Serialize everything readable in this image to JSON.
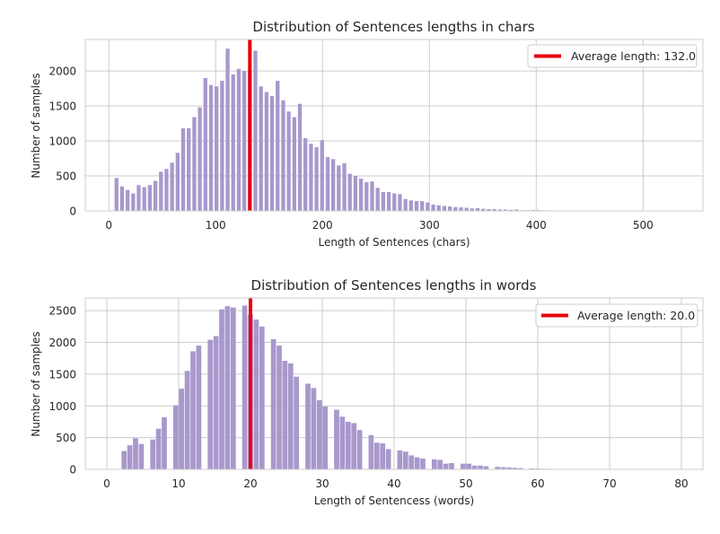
{
  "chart_data": [
    {
      "type": "bar",
      "title": "Distribution of Sentences lengths in chars",
      "xlabel": "Length of Sentences (chars)",
      "ylabel": "Number of samples",
      "xlim": [
        -22,
        556
      ],
      "ylim": [
        0,
        2450
      ],
      "xticks": [
        0,
        100,
        200,
        300,
        400,
        500
      ],
      "yticks": [
        0,
        500,
        1000,
        1500,
        2000
      ],
      "grid": true,
      "legend_position": "top-right",
      "bar_color": "#a898cc",
      "bins": {
        "centers": [
          7.2,
          12.4,
          17.6,
          22.8,
          28.0,
          33.2,
          38.4,
          43.6,
          48.8,
          54.0,
          59.2,
          64.4,
          69.6,
          74.8,
          80.0,
          85.2,
          90.4,
          95.6,
          100.8,
          106.0,
          111.2,
          116.4,
          121.6,
          126.8,
          132.0,
          137.2,
          142.4,
          147.6,
          152.8,
          158.0,
          163.2,
          168.4,
          173.6,
          178.8,
          184.0,
          189.2,
          194.4,
          199.6,
          204.8,
          210.0,
          215.2,
          220.4,
          225.6,
          230.8,
          236.0,
          241.2,
          246.4,
          251.6,
          256.8,
          262.0,
          267.2,
          272.4,
          277.6,
          282.8,
          288.0,
          293.2,
          298.4,
          303.6,
          308.8,
          314.0,
          319.2,
          324.4,
          329.6,
          334.8,
          340.0,
          345.2,
          350.4,
          355.6,
          360.8,
          366.0,
          371.2,
          376.4,
          381.6,
          386.8,
          392.0,
          397.2,
          402.4,
          407.6,
          412.8,
          418.0,
          423.2,
          428.4,
          433.6,
          438.8,
          444.0,
          449.2,
          454.4,
          459.6,
          464.8,
          470.0,
          475.2,
          480.4,
          485.6,
          490.8,
          496.0,
          501.2,
          506.4,
          511.6,
          516.8,
          522.0,
          527.2
        ],
        "values": [
          470,
          350,
          300,
          250,
          370,
          340,
          370,
          430,
          560,
          600,
          690,
          830,
          1180,
          1180,
          1340,
          1480,
          1900,
          1800,
          1780,
          1860,
          2320,
          1950,
          2030,
          2000,
          2000,
          2290,
          1780,
          1700,
          1640,
          1860,
          1580,
          1420,
          1340,
          1530,
          1040,
          960,
          910,
          1010,
          770,
          740,
          650,
          680,
          530,
          500,
          460,
          410,
          420,
          330,
          270,
          270,
          250,
          240,
          170,
          150,
          140,
          140,
          120,
          90,
          80,
          70,
          65,
          55,
          50,
          45,
          35,
          40,
          30,
          25,
          25,
          20,
          20,
          15,
          20,
          10,
          10,
          12,
          10,
          8,
          6,
          5,
          5,
          4,
          3,
          3,
          3,
          2,
          2,
          2,
          2,
          2,
          2,
          1,
          1,
          1,
          1,
          1,
          1,
          1,
          1,
          1,
          1
        ]
      },
      "average_line": {
        "value": 132.0,
        "color": "#e8000b"
      },
      "legend": [
        "Average length: 132.0"
      ]
    },
    {
      "type": "bar",
      "title": "Distribution of Sentences lengths in words",
      "xlabel": "Length of Sentencess (words)",
      "ylabel": "Number of samples",
      "xlim": [
        -3,
        83
      ],
      "ylim": [
        0,
        2700
      ],
      "xticks": [
        0,
        10,
        20,
        30,
        40,
        50,
        60,
        70,
        80
      ],
      "yticks": [
        0,
        500,
        1000,
        1500,
        2000,
        2500
      ],
      "grid": true,
      "legend_position": "top-right",
      "bar_color": "#a898cc",
      "bins": {
        "centers": [
          2.4,
          3.2,
          4.0,
          4.8,
          6.4,
          7.2,
          8.0,
          9.6,
          10.4,
          11.2,
          12.0,
          12.8,
          14.4,
          15.2,
          16.0,
          16.8,
          17.6,
          19.2,
          20.0,
          20.8,
          21.6,
          23.2,
          24.0,
          24.8,
          25.6,
          26.4,
          28.0,
          28.8,
          29.6,
          30.4,
          32.0,
          32.8,
          33.6,
          34.4,
          35.2,
          36.8,
          37.6,
          38.4,
          39.2,
          40.8,
          41.6,
          42.4,
          43.2,
          44.0,
          45.6,
          46.4,
          47.2,
          48.0,
          49.6,
          50.4,
          51.2,
          52.0,
          52.8,
          54.4,
          55.2,
          56.0,
          56.8,
          57.6,
          59.2,
          60.0,
          60.8,
          61.6,
          62.4,
          64.0,
          64.8,
          65.6,
          66.4,
          68.0,
          68.8,
          69.6,
          70.4,
          71.2,
          72.8,
          73.6,
          74.4,
          75.2,
          76.0,
          77.6,
          78.4,
          79.2
        ],
        "values": [
          290,
          380,
          490,
          400,
          470,
          640,
          820,
          1010,
          1270,
          1550,
          1860,
          1950,
          2040,
          2100,
          2520,
          2570,
          2550,
          2580,
          2440,
          2360,
          2250,
          2050,
          1950,
          1710,
          1670,
          1460,
          1350,
          1280,
          1090,
          990,
          940,
          830,
          750,
          730,
          620,
          540,
          420,
          410,
          320,
          300,
          280,
          220,
          190,
          170,
          160,
          150,
          90,
          100,
          90,
          90,
          60,
          60,
          50,
          40,
          35,
          30,
          25,
          20,
          15,
          12,
          10,
          8,
          6,
          5,
          4,
          3,
          3,
          3,
          2,
          2,
          2,
          2,
          1,
          1,
          1,
          1,
          1,
          1,
          1,
          1
        ]
      },
      "average_line": {
        "value": 20.0,
        "color": "#e8000b"
      },
      "legend": [
        "Average length: 20.0"
      ]
    }
  ]
}
